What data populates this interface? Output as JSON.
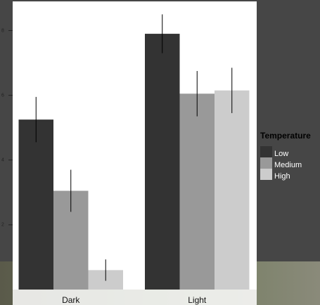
{
  "chart_data": {
    "type": "bar",
    "categories": [
      "Dark",
      "Light"
    ],
    "legend_title": "Temperature",
    "series": [
      {
        "name": "Low",
        "color": "#333333",
        "values": [
          5.25,
          7.9
        ],
        "errors": [
          0.7,
          0.6
        ]
      },
      {
        "name": "Medium",
        "color": "#999999",
        "values": [
          3.05,
          6.05
        ],
        "errors": [
          0.65,
          0.7
        ]
      },
      {
        "name": "High",
        "color": "#cccccc",
        "values": [
          0.6,
          6.15
        ],
        "errors": [
          0.33,
          0.7
        ]
      }
    ],
    "ylim": [
      0,
      8.9
    ],
    "yticks": [
      2,
      4,
      6,
      8
    ],
    "grid": false,
    "legend": "right"
  }
}
